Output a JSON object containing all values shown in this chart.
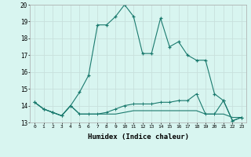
{
  "xlabel": "Humidex (Indice chaleur)",
  "x": [
    0,
    1,
    2,
    3,
    4,
    5,
    6,
    7,
    8,
    9,
    10,
    11,
    12,
    13,
    14,
    15,
    16,
    17,
    18,
    19,
    20,
    21,
    22,
    23
  ],
  "series_main": [
    14.2,
    13.8,
    13.6,
    13.4,
    14.0,
    14.8,
    15.8,
    18.8,
    18.8,
    19.3,
    20.0,
    19.3,
    17.1,
    17.1,
    19.2,
    17.5,
    17.8,
    17.0,
    16.7,
    16.7,
    14.7,
    14.3,
    13.1,
    13.3
  ],
  "series_low1": [
    14.2,
    13.8,
    13.6,
    13.4,
    14.0,
    13.5,
    13.5,
    13.5,
    13.5,
    13.5,
    13.6,
    13.7,
    13.7,
    13.7,
    13.7,
    13.7,
    13.7,
    13.7,
    13.7,
    13.5,
    13.5,
    13.5,
    13.3,
    13.3
  ],
  "series_low2": [
    14.2,
    13.8,
    13.6,
    13.4,
    14.0,
    13.5,
    13.5,
    13.5,
    13.6,
    13.8,
    14.0,
    14.1,
    14.1,
    14.1,
    14.2,
    14.2,
    14.3,
    14.3,
    14.7,
    13.5,
    13.5,
    14.3,
    13.1,
    13.3
  ],
  "line_color": "#1a7a6e",
  "bg_color": "#d8f5f0",
  "grid_color": "#c8e0dc",
  "ylim": [
    13,
    20
  ],
  "xlim": [
    -0.5,
    23.5
  ]
}
